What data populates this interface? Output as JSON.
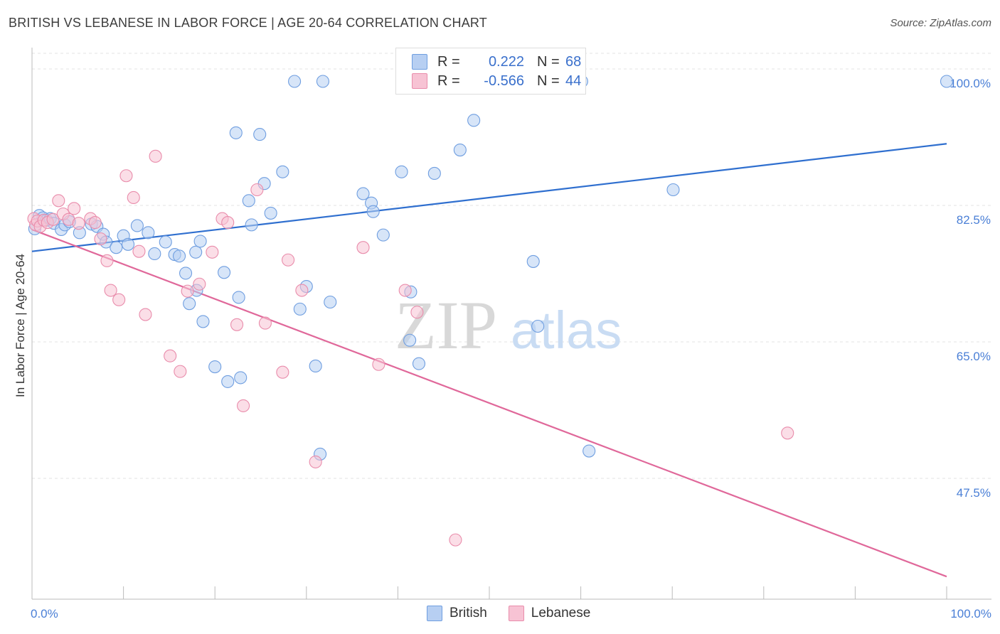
{
  "header": {
    "title": "BRITISH VS LEBANESE IN LABOR FORCE | AGE 20-64 CORRELATION CHART",
    "source": "Source: ZipAtlas.com"
  },
  "watermark": {
    "zip": "ZIP",
    "atlas": "atlas"
  },
  "legend": {
    "r_label": "R =",
    "n_label": "N =",
    "british": {
      "r": "0.222",
      "n": "68"
    },
    "lebanese": {
      "r": "-0.566",
      "n": "44"
    }
  },
  "colors": {
    "british_fill": "#b7cff2",
    "british_stroke": "#6f9ee0",
    "british_line": "#2f6fcf",
    "lebanese_fill": "#f7c3d4",
    "lebanese_stroke": "#e98cab",
    "lebanese_line": "#e0689a",
    "tick_text": "#4a7fd6",
    "grid": "#e3e3e3"
  },
  "chart_data": {
    "type": "scatter",
    "title": "BRITISH VS LEBANESE IN LABOR FORCE | AGE 20-64 CORRELATION CHART",
    "xlabel": "",
    "ylabel": "In Labor Force | Age 20-64",
    "xlim": [
      0,
      100
    ],
    "ylim": [
      32,
      102
    ],
    "x_tick_labels": [
      "0.0%",
      "100.0%"
    ],
    "y_ticks": [
      47.5,
      65.0,
      82.5,
      100.0
    ],
    "y_tick_labels": [
      "47.5%",
      "65.0%",
      "82.5%",
      "100.0%"
    ],
    "grid": true,
    "legend_position": "top-center",
    "series": [
      {
        "name": "British",
        "points": [
          [
            0.3,
            79.5
          ],
          [
            0.8,
            81.2
          ],
          [
            1.2,
            80.9
          ],
          [
            1.6,
            80.6
          ],
          [
            2.0,
            80.8
          ],
          [
            2.4,
            80.2
          ],
          [
            3.2,
            79.4
          ],
          [
            3.6,
            80.0
          ],
          [
            4.1,
            80.4
          ],
          [
            5.2,
            79.0
          ],
          [
            6.5,
            80.1
          ],
          [
            7.1,
            79.8
          ],
          [
            7.8,
            78.8
          ],
          [
            8.1,
            77.8
          ],
          [
            9.2,
            77.1
          ],
          [
            10.0,
            78.6
          ],
          [
            11.5,
            79.9
          ],
          [
            12.7,
            79.0
          ],
          [
            10.5,
            77.5
          ],
          [
            13.4,
            76.3
          ],
          [
            14.6,
            77.8
          ],
          [
            15.6,
            76.2
          ],
          [
            16.8,
            73.8
          ],
          [
            16.1,
            76.0
          ],
          [
            17.9,
            76.5
          ],
          [
            18.4,
            77.9
          ],
          [
            18.0,
            71.6
          ],
          [
            17.2,
            69.9
          ],
          [
            18.7,
            67.6
          ],
          [
            20.0,
            61.8
          ],
          [
            21.4,
            59.9
          ],
          [
            22.8,
            60.4
          ],
          [
            21.0,
            73.9
          ],
          [
            22.6,
            70.7
          ],
          [
            23.7,
            83.1
          ],
          [
            24.0,
            80.0
          ],
          [
            22.3,
            91.8
          ],
          [
            24.9,
            91.6
          ],
          [
            25.4,
            85.3
          ],
          [
            26.1,
            81.5
          ],
          [
            27.4,
            86.8
          ],
          [
            30.0,
            72.1
          ],
          [
            29.3,
            69.2
          ],
          [
            31.0,
            61.9
          ],
          [
            31.5,
            50.6
          ],
          [
            32.6,
            70.1
          ],
          [
            36.2,
            84.0
          ],
          [
            37.1,
            82.8
          ],
          [
            37.3,
            81.7
          ],
          [
            38.4,
            78.7
          ],
          [
            40.4,
            86.8
          ],
          [
            41.4,
            71.4
          ],
          [
            41.3,
            65.2
          ],
          [
            42.3,
            62.2
          ],
          [
            44.0,
            86.6
          ],
          [
            46.8,
            89.6
          ],
          [
            48.3,
            93.4
          ],
          [
            54.8,
            75.3
          ],
          [
            60.9,
            51.0
          ],
          [
            70.1,
            84.5
          ],
          [
            49.6,
            98.4
          ],
          [
            55.3,
            67.0
          ],
          [
            40.9,
            98.4
          ],
          [
            41.2,
            98.4
          ],
          [
            28.7,
            98.4
          ],
          [
            31.8,
            98.4
          ],
          [
            60.1,
            98.4
          ],
          [
            100.0,
            98.4
          ]
        ]
      },
      {
        "name": "Lebanese",
        "points": [
          [
            0.2,
            80.8
          ],
          [
            0.4,
            80.0
          ],
          [
            0.6,
            80.5
          ],
          [
            0.9,
            79.8
          ],
          [
            1.3,
            80.6
          ],
          [
            1.7,
            80.3
          ],
          [
            2.3,
            80.7
          ],
          [
            2.9,
            83.1
          ],
          [
            3.4,
            81.4
          ],
          [
            4.0,
            80.7
          ],
          [
            4.6,
            82.1
          ],
          [
            5.1,
            80.2
          ],
          [
            6.4,
            80.8
          ],
          [
            6.9,
            80.3
          ],
          [
            7.5,
            78.2
          ],
          [
            8.2,
            75.4
          ],
          [
            8.6,
            71.6
          ],
          [
            9.5,
            70.4
          ],
          [
            10.3,
            86.3
          ],
          [
            11.1,
            83.5
          ],
          [
            11.7,
            76.6
          ],
          [
            12.4,
            68.5
          ],
          [
            13.5,
            88.8
          ],
          [
            15.1,
            63.2
          ],
          [
            16.2,
            61.2
          ],
          [
            17.0,
            71.5
          ],
          [
            18.3,
            72.4
          ],
          [
            19.7,
            76.5
          ],
          [
            20.8,
            80.8
          ],
          [
            21.4,
            80.3
          ],
          [
            22.4,
            67.2
          ],
          [
            23.1,
            56.8
          ],
          [
            24.6,
            84.5
          ],
          [
            25.5,
            67.4
          ],
          [
            27.4,
            61.1
          ],
          [
            28.0,
            75.5
          ],
          [
            29.5,
            71.6
          ],
          [
            31.0,
            49.6
          ],
          [
            36.2,
            77.1
          ],
          [
            37.9,
            62.1
          ],
          [
            40.8,
            71.6
          ],
          [
            42.1,
            68.8
          ],
          [
            46.3,
            39.6
          ],
          [
            82.6,
            53.3
          ]
        ]
      }
    ],
    "trendlines": [
      {
        "name": "British",
        "x": [
          0,
          100
        ],
        "y": [
          76.6,
          90.4
        ]
      },
      {
        "name": "Lebanese",
        "x": [
          0,
          100
        ],
        "y": [
          79.4,
          34.9
        ]
      }
    ]
  }
}
